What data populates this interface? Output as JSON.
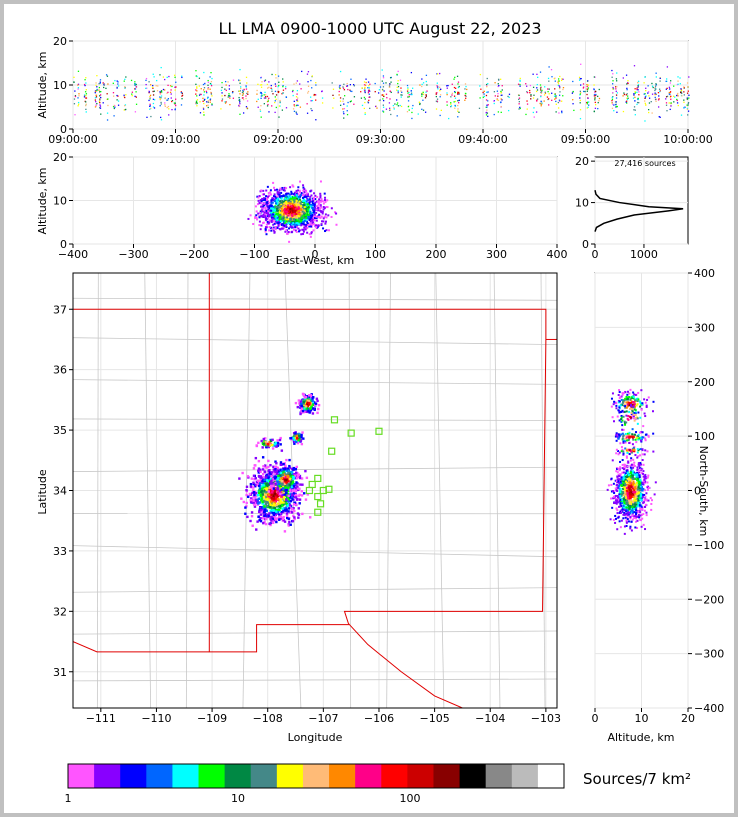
{
  "title": "LL LMA 0900-1000 UTC August 22, 2023",
  "source_count_label": "27,416 sources",
  "colorbar_label": "Sources/7 km²",
  "colorbar_ticks": [
    "1",
    "10",
    "100"
  ],
  "colorbar_colors": [
    "#ff55ff",
    "#8800ff",
    "#0000ff",
    "#0066ff",
    "#00ffff",
    "#00ff00",
    "#008844",
    "#448888",
    "#ffff00",
    "#ffbb77",
    "#ff8800",
    "#ff0088",
    "#ff0000",
    "#cc0000",
    "#880000",
    "#000000",
    "#888888",
    "#bbbbbb",
    "#ffffff"
  ],
  "chart_data": [
    {
      "id": "time-altitude",
      "type": "scatter",
      "xlabel": "",
      "ylabel": "Altitude, km",
      "x_ticks": [
        "09:00:00",
        "09:10:00",
        "09:20:00",
        "09:30:00",
        "09:40:00",
        "09:50:00",
        "10:00:00"
      ],
      "ylim": [
        0,
        20
      ],
      "y_ticks": [
        0,
        10,
        20
      ],
      "note_values": "source altitudes concentrated 3-12 km throughout 09:00-10:00"
    },
    {
      "id": "ew-altitude",
      "type": "scatter",
      "xlabel": "East-West, km",
      "ylabel": "Altitude, km",
      "xlim": [
        -400,
        400
      ],
      "x_ticks": [
        -400,
        -300,
        -200,
        -100,
        0,
        100,
        200,
        300,
        400
      ],
      "ylim": [
        0,
        20
      ],
      "y_ticks": [
        0,
        10,
        20
      ],
      "cluster_center_x": -40,
      "cluster_center_y": 8
    },
    {
      "id": "altitude-histogram",
      "type": "line",
      "xlim": [
        0,
        1900
      ],
      "x_ticks": [
        0,
        1000
      ],
      "ylim": [
        0,
        21
      ],
      "y_ticks": [
        0,
        10,
        20
      ],
      "altitude": [
        3,
        4,
        5,
        6,
        7,
        8,
        8.5,
        9,
        10,
        11,
        12,
        13
      ],
      "count": [
        0,
        30,
        180,
        450,
        800,
        1500,
        1800,
        1100,
        500,
        100,
        20,
        0
      ]
    },
    {
      "id": "plan-view",
      "type": "scatter",
      "xlabel": "Longitude",
      "ylabel": "Latitude",
      "xlim": [
        -111.5,
        -102.8
      ],
      "x_ticks": [
        -111,
        -110,
        -109,
        -108,
        -107,
        -106,
        -105,
        -104,
        -103
      ],
      "ylim": [
        30.4,
        37.6
      ],
      "y_ticks": [
        31,
        32,
        33,
        34,
        35,
        36,
        37
      ],
      "stations": [
        {
          "lon": -106.8,
          "lat": 35.17
        },
        {
          "lon": -106.5,
          "lat": 34.95
        },
        {
          "lon": -106.0,
          "lat": 34.98
        },
        {
          "lon": -106.85,
          "lat": 34.65
        },
        {
          "lon": -107.1,
          "lat": 34.2
        },
        {
          "lon": -107.2,
          "lat": 34.1
        },
        {
          "lon": -107.0,
          "lat": 34.0
        },
        {
          "lon": -106.9,
          "lat": 34.02
        },
        {
          "lon": -107.1,
          "lat": 33.9
        },
        {
          "lon": -107.05,
          "lat": 33.78
        },
        {
          "lon": -107.1,
          "lat": 33.64
        },
        {
          "lon": -107.25,
          "lat": 34.0
        }
      ],
      "clusters": [
        {
          "lon": -107.9,
          "lat": 33.95
        },
        {
          "lon": -107.3,
          "lat": 35.45
        },
        {
          "lon": -107.5,
          "lat": 34.9
        },
        {
          "lon": -108.0,
          "lat": 34.8
        },
        {
          "lon": -107.7,
          "lat": 34.2
        }
      ]
    },
    {
      "id": "altitude-northsouth",
      "type": "scatter",
      "xlabel": "Altitude, km",
      "ylabel": "North-South, km",
      "xlim": [
        0,
        20
      ],
      "x_ticks": [
        0,
        10,
        20
      ],
      "ylim": [
        -400,
        400
      ],
      "y_ticks": [
        -400,
        -300,
        -200,
        -100,
        0,
        100,
        200,
        300,
        400
      ]
    }
  ]
}
